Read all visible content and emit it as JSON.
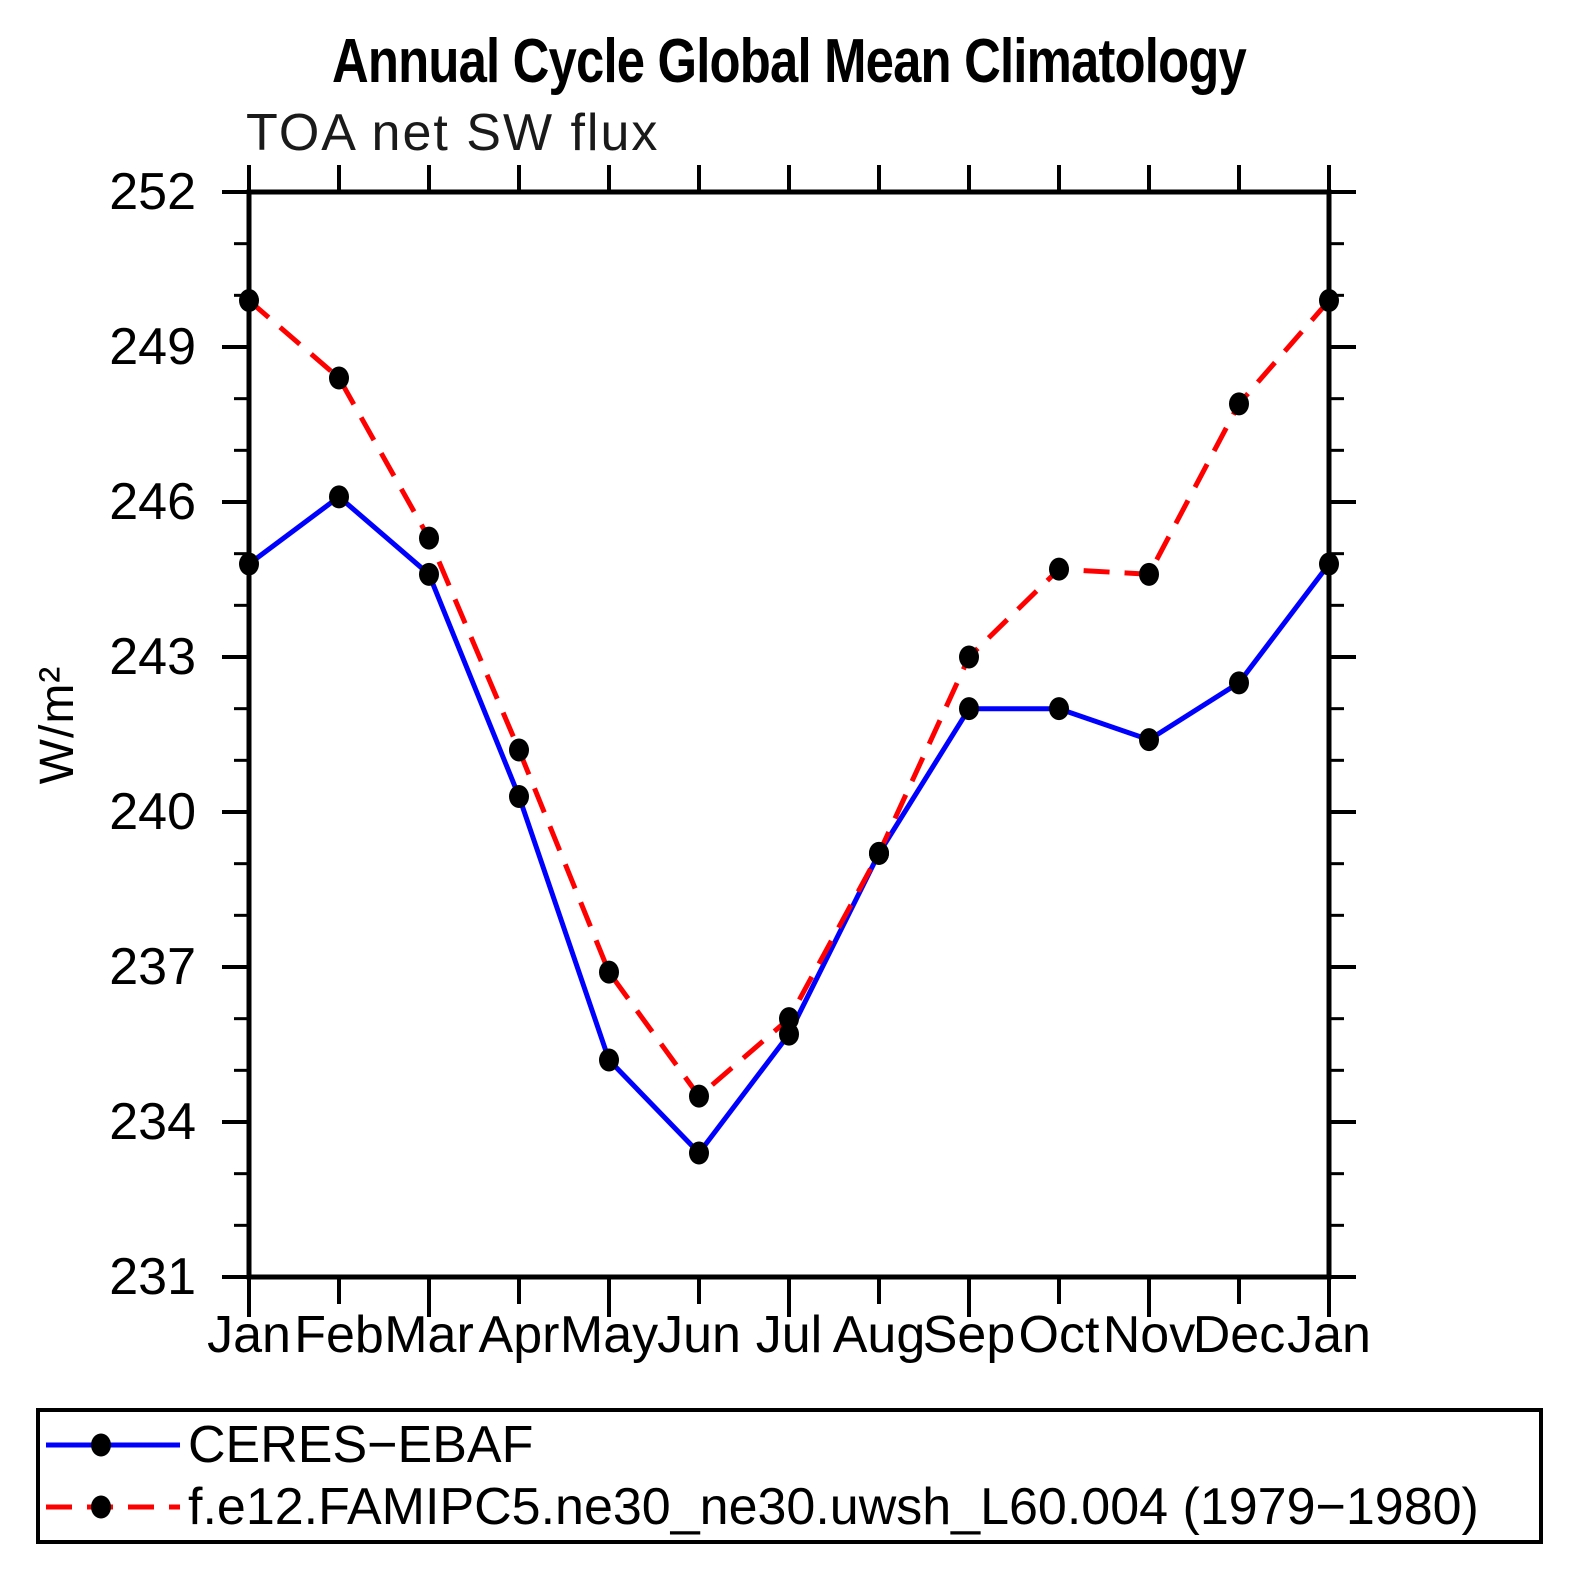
{
  "title": "Annual Cycle Global Mean Climatology",
  "subtitle": "TOA net SW flux",
  "chart_data": {
    "type": "line",
    "x_categories": [
      "Jan",
      "Feb",
      "Mar",
      "Apr",
      "May",
      "Jun",
      "Jul",
      "Aug",
      "Sep",
      "Oct",
      "Nov",
      "Dec",
      "Jan"
    ],
    "ylabel": "W/m²",
    "ylim": [
      231,
      252
    ],
    "ytick_major_interval": 3,
    "ytick_minor_interval": 1,
    "ytick_labels": [
      "252",
      "249",
      "246",
      "243",
      "240",
      "237",
      "234",
      "231"
    ],
    "grid": false,
    "legend_position": "bottom-left-box",
    "axis_color": "#000000",
    "marker_color": "#000000",
    "series": [
      {
        "name": "CERES−EBAF",
        "color": "#0000ff",
        "line_style": "solid",
        "marker": "filled-circle",
        "values": [
          244.8,
          246.1,
          244.6,
          240.3,
          235.2,
          233.4,
          235.7,
          239.2,
          242.0,
          242.0,
          241.4,
          242.5,
          244.8
        ]
      },
      {
        "name": "f.e12.FAMIPC5.ne30_ne30.uwsh_L60.004 (1979−1980)",
        "color": "#ff0000",
        "line_style": "dashed",
        "marker": "filled-circle",
        "values": [
          249.9,
          248.4,
          245.3,
          241.2,
          236.9,
          234.5,
          236.0,
          239.2,
          243.0,
          244.7,
          244.6,
          247.9,
          249.9
        ]
      }
    ]
  }
}
